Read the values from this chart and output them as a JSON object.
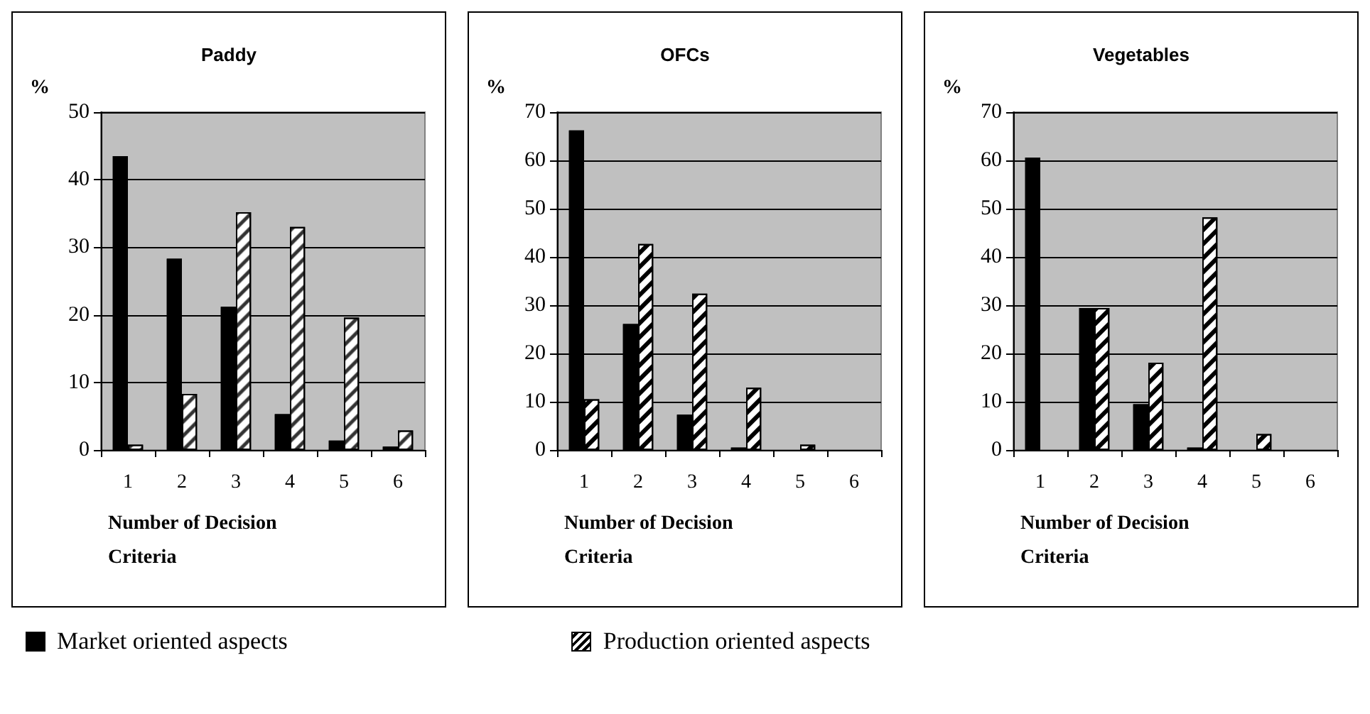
{
  "chart_data": [
    {
      "type": "bar",
      "title": "Paddy",
      "xlabel": "Number of Decision Criteria",
      "ylabel": "%",
      "categories": [
        "1",
        "2",
        "3",
        "4",
        "5",
        "6"
      ],
      "ylim": [
        0,
        50
      ],
      "yticks": [
        0,
        10,
        20,
        30,
        40,
        50
      ],
      "grid": "y",
      "legend": "bottom",
      "series": [
        {
          "name": "Market oriented aspects",
          "color": "#000000",
          "values": [
            43.5,
            28.3,
            21.2,
            5.3,
            1.4,
            0.5
          ]
        },
        {
          "name": "Production oriented aspects",
          "color": "#ffffff",
          "values": [
            0.8,
            8.3,
            35.2,
            33.0,
            19.6,
            2.9
          ]
        }
      ]
    },
    {
      "type": "bar",
      "title": "OFCs",
      "xlabel": "Number of Decision Criteria",
      "ylabel": "%",
      "categories": [
        "1",
        "2",
        "3",
        "4",
        "5",
        "6"
      ],
      "ylim": [
        0,
        70
      ],
      "yticks": [
        0,
        10,
        20,
        30,
        40,
        50,
        60,
        70
      ],
      "grid": "y",
      "series": [
        {
          "color": "#000000",
          "values": [
            66.2,
            26.1,
            7.3,
            0.5,
            0,
            0
          ]
        },
        {
          "color": "#ffffff",
          "values": [
            10.5,
            42.7,
            32.4,
            12.9,
            1.1,
            0
          ]
        }
      ]
    },
    {
      "type": "bar",
      "title": "Vegetables",
      "xlabel": "Number of Decision Criteria",
      "ylabel": "%",
      "categories": [
        "1",
        "2",
        "3",
        "4",
        "5",
        "6"
      ],
      "ylim": [
        0,
        70
      ],
      "yticks": [
        0,
        10,
        20,
        30,
        40,
        50,
        60,
        70
      ],
      "grid": "y",
      "series": [
        {
          "color": "#000000",
          "values": [
            60.6,
            29.4,
            9.5,
            0.5,
            0,
            0
          ]
        },
        {
          "color": "#ffffff",
          "values": [
            0,
            29.4,
            18.1,
            48.2,
            3.3,
            0
          ]
        }
      ]
    }
  ]
}
